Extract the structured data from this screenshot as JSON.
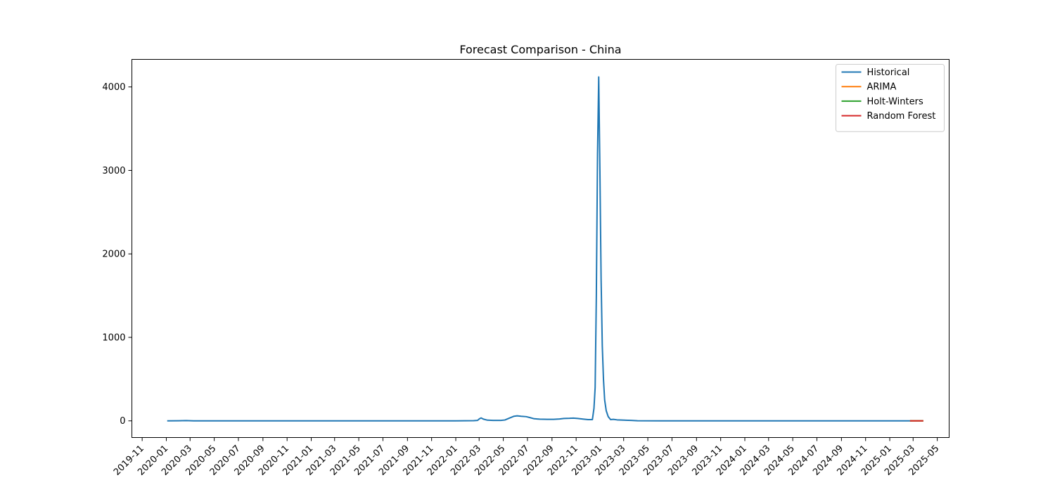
{
  "chart_data": {
    "type": "line",
    "title": "Forecast Comparison - China",
    "xlabel": "",
    "ylabel": "",
    "x_axis": {
      "type": "date",
      "range": [
        "2019-10-06",
        "2025-05-31"
      ],
      "tick_labels": [
        "2019-11",
        "2020-01",
        "2020-03",
        "2020-05",
        "2020-07",
        "2020-09",
        "2020-11",
        "2021-01",
        "2021-03",
        "2021-05",
        "2021-07",
        "2021-09",
        "2021-11",
        "2022-01",
        "2022-03",
        "2022-05",
        "2022-07",
        "2022-09",
        "2022-11",
        "2023-01",
        "2023-03",
        "2023-05",
        "2023-07",
        "2023-09",
        "2023-11",
        "2024-01",
        "2024-03",
        "2024-05",
        "2024-07",
        "2024-09",
        "2024-11",
        "2025-01",
        "2025-03",
        "2025-05"
      ]
    },
    "y_axis": {
      "range": [
        -200,
        4330
      ],
      "ticks": [
        0,
        1000,
        2000,
        3000,
        4000
      ]
    },
    "grid": false,
    "legend": "top-right",
    "series": [
      {
        "name": "Historical",
        "color": "#1f77b4",
        "points": [
          [
            "2020-01-05",
            0
          ],
          [
            "2020-02-01",
            1
          ],
          [
            "2020-02-20",
            3
          ],
          [
            "2020-03-10",
            0
          ],
          [
            "2020-06-01",
            0
          ],
          [
            "2021-01-01",
            0
          ],
          [
            "2021-06-01",
            0
          ],
          [
            "2022-01-01",
            0
          ],
          [
            "2022-02-15",
            2
          ],
          [
            "2022-02-25",
            5
          ],
          [
            "2022-03-02",
            25
          ],
          [
            "2022-03-06",
            35
          ],
          [
            "2022-03-12",
            20
          ],
          [
            "2022-03-22",
            8
          ],
          [
            "2022-04-05",
            5
          ],
          [
            "2022-04-25",
            5
          ],
          [
            "2022-05-05",
            10
          ],
          [
            "2022-05-15",
            30
          ],
          [
            "2022-05-28",
            55
          ],
          [
            "2022-06-05",
            60
          ],
          [
            "2022-06-15",
            55
          ],
          [
            "2022-06-28",
            50
          ],
          [
            "2022-07-08",
            38
          ],
          [
            "2022-07-18",
            25
          ],
          [
            "2022-08-01",
            20
          ],
          [
            "2022-08-20",
            18
          ],
          [
            "2022-09-05",
            18
          ],
          [
            "2022-09-20",
            22
          ],
          [
            "2022-10-01",
            28
          ],
          [
            "2022-10-15",
            30
          ],
          [
            "2022-10-25",
            33
          ],
          [
            "2022-11-05",
            28
          ],
          [
            "2022-11-20",
            20
          ],
          [
            "2022-12-01",
            15
          ],
          [
            "2022-12-12",
            15
          ],
          [
            "2022-12-16",
            150
          ],
          [
            "2022-12-19",
            400
          ],
          [
            "2022-12-22",
            1500
          ],
          [
            "2022-12-25",
            3200
          ],
          [
            "2022-12-28",
            4120
          ],
          [
            "2022-12-31",
            3000
          ],
          [
            "2023-01-03",
            1700
          ],
          [
            "2023-01-06",
            900
          ],
          [
            "2023-01-09",
            500
          ],
          [
            "2023-01-12",
            250
          ],
          [
            "2023-01-16",
            120
          ],
          [
            "2023-01-21",
            50
          ],
          [
            "2023-01-27",
            15
          ],
          [
            "2023-02-03",
            18
          ],
          [
            "2023-02-12",
            12
          ],
          [
            "2023-03-01",
            8
          ],
          [
            "2023-03-20",
            5
          ],
          [
            "2023-04-05",
            1
          ],
          [
            "2023-06-01",
            0
          ],
          [
            "2024-01-01",
            0
          ],
          [
            "2024-06-01",
            0
          ],
          [
            "2025-01-01",
            0
          ],
          [
            "2025-02-23",
            0
          ]
        ]
      },
      {
        "name": "ARIMA",
        "color": "#ff7f0e",
        "points": [
          [
            "2025-02-23",
            0
          ],
          [
            "2025-03-25",
            0
          ]
        ]
      },
      {
        "name": "Holt-Winters",
        "color": "#2ca02c",
        "points": [
          [
            "2025-02-23",
            0
          ],
          [
            "2025-03-25",
            0
          ]
        ]
      },
      {
        "name": "Random Forest",
        "color": "#d62728",
        "points": [
          [
            "2025-02-23",
            0
          ],
          [
            "2025-03-25",
            0
          ]
        ]
      }
    ]
  }
}
